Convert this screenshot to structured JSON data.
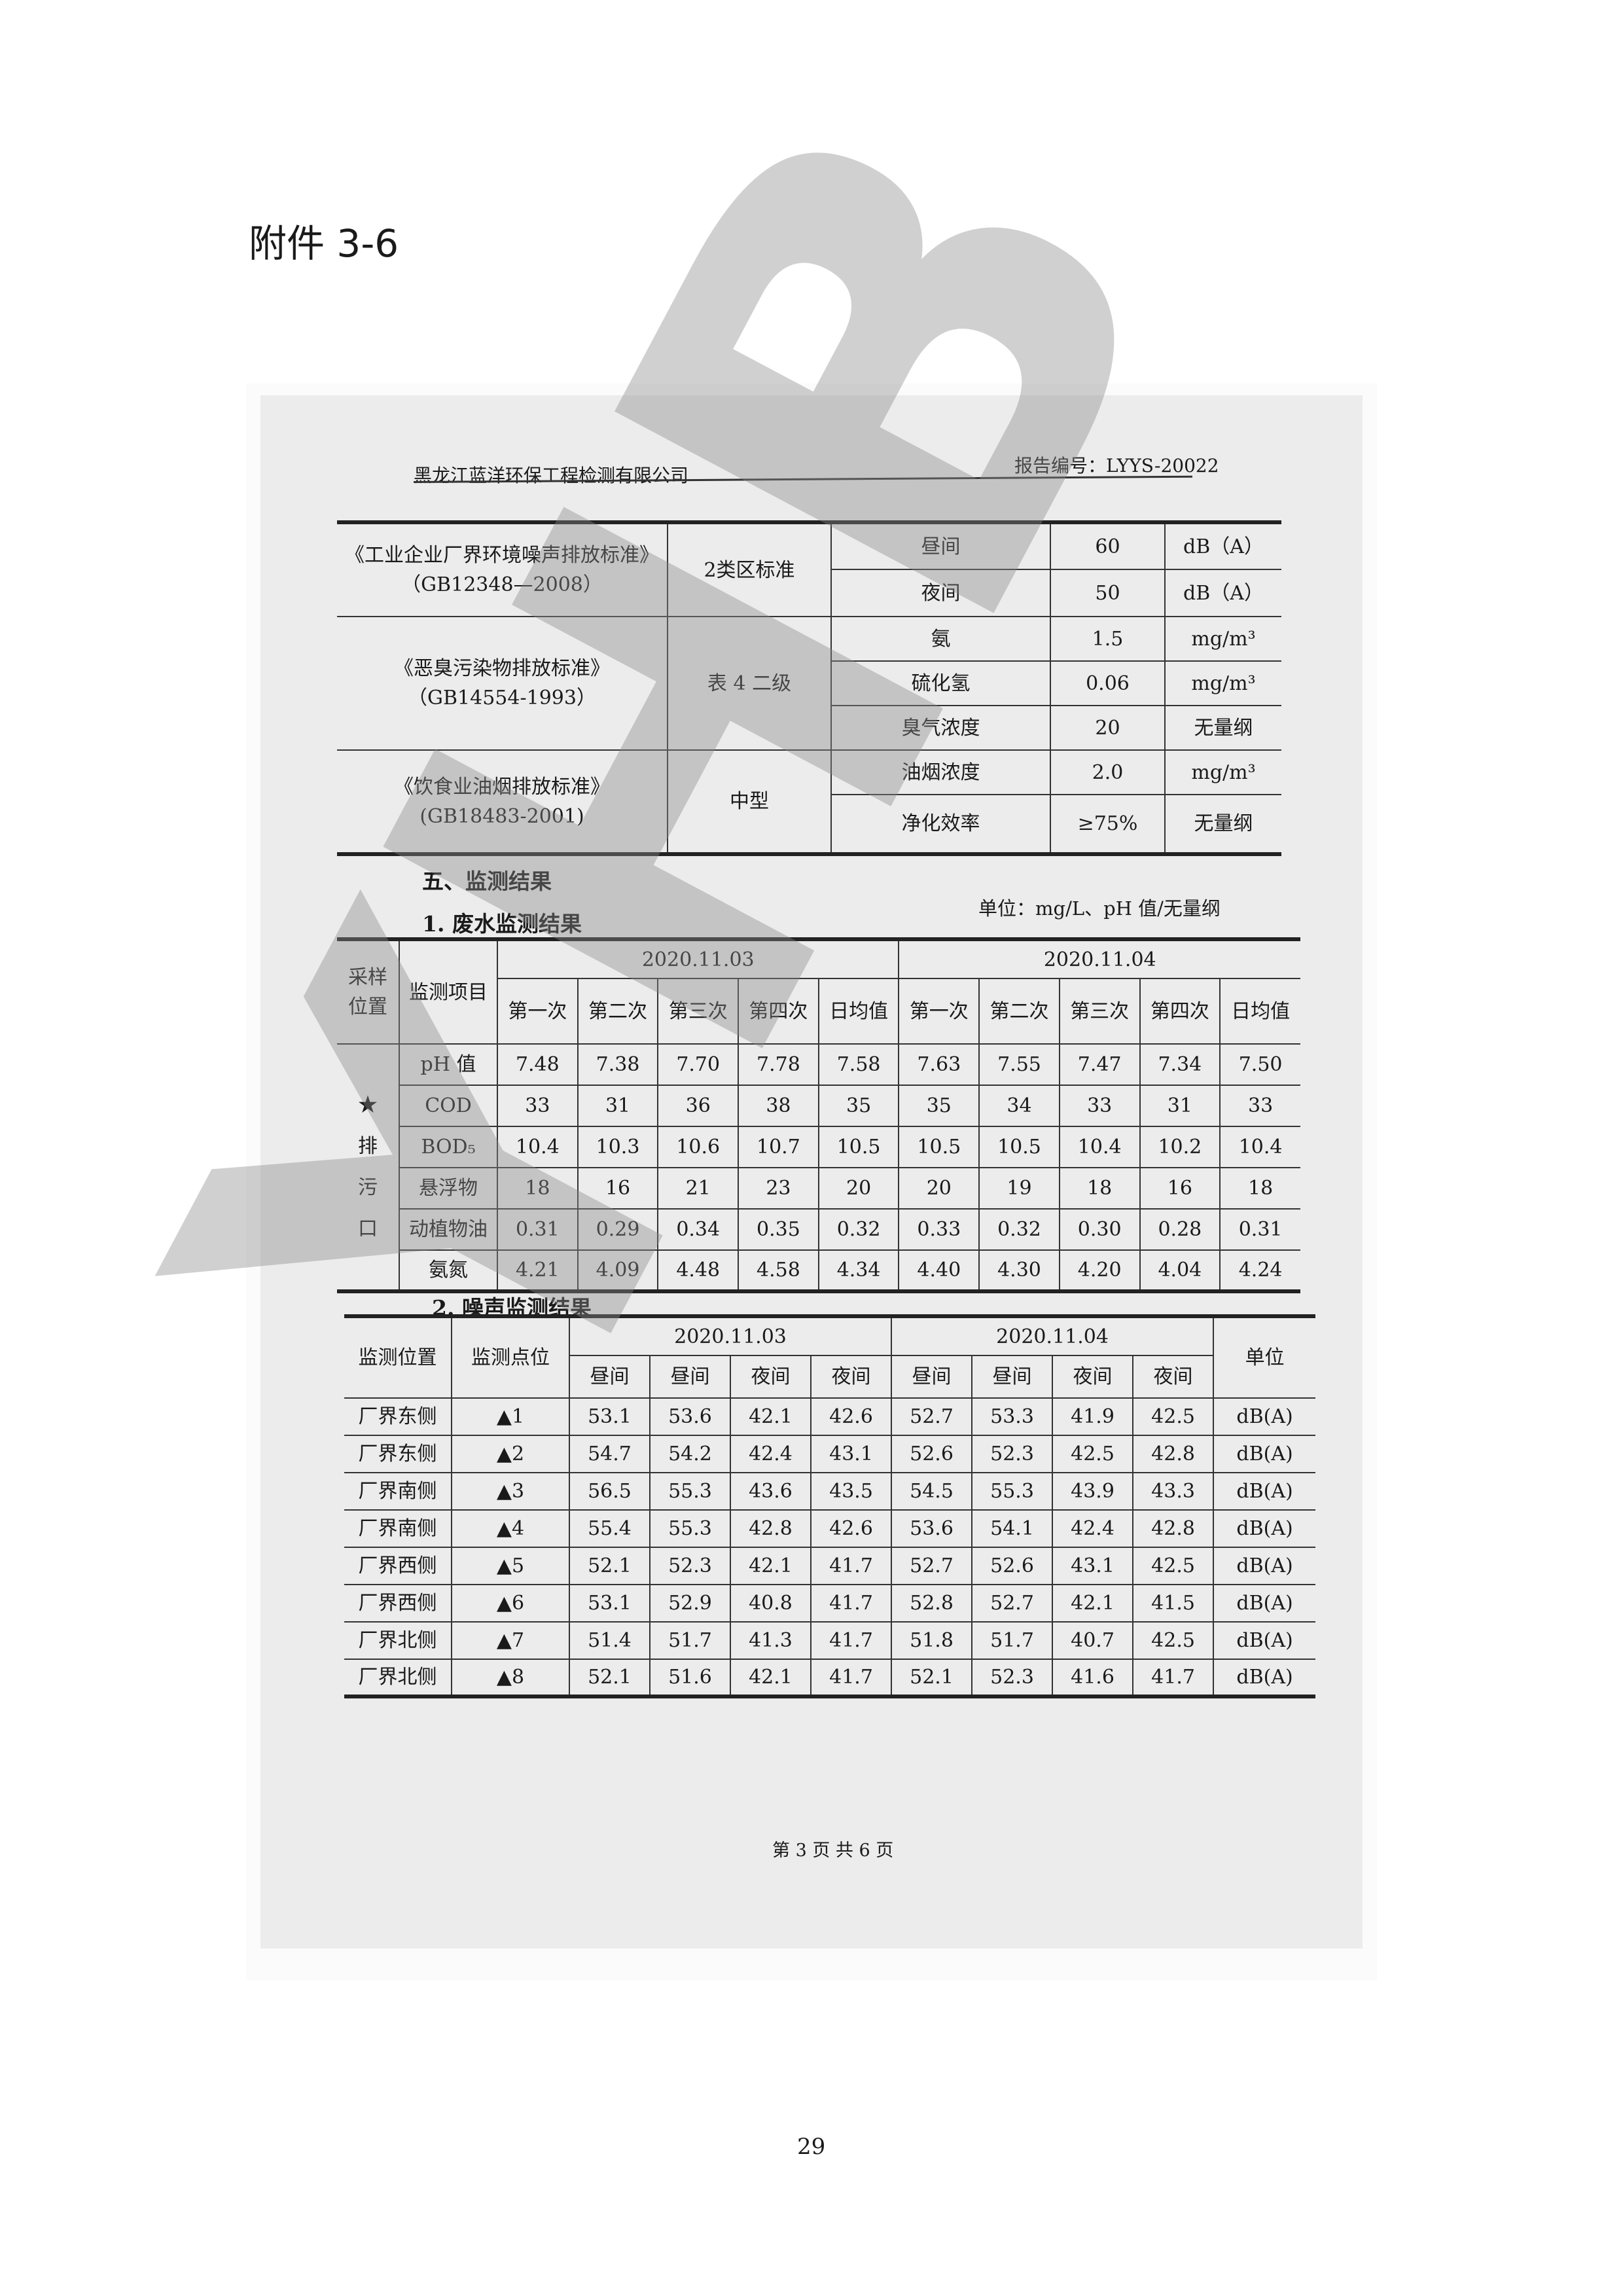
{
  "annex_title": "附件 3-6",
  "header": {
    "company": "黑龙江蓝洋环保工程检测有限公司",
    "report_no": "报告编号：LYYS-20022"
  },
  "standards": [
    {
      "name": "《工业企业厂界环境噪声排放标准》",
      "code": "（GB12348—2008）",
      "class": "2类区标准",
      "items": [
        {
          "item": "昼间",
          "limit": "60",
          "unit": "dB（A）"
        },
        {
          "item": "夜间",
          "limit": "50",
          "unit": "dB（A）"
        }
      ]
    },
    {
      "name": "《恶臭污染物排放标准》",
      "code": "（GB14554-1993）",
      "class": "表 4 二级",
      "items": [
        {
          "item": "氨",
          "limit": "1.5",
          "unit": "mg/m³"
        },
        {
          "item": "硫化氢",
          "limit": "0.06",
          "unit": "mg/m³"
        },
        {
          "item": "臭气浓度",
          "limit": "20",
          "unit": "无量纲"
        }
      ]
    },
    {
      "name": "《饮食业油烟排放标准》",
      "code": "(GB18483-2001)",
      "class": "中型",
      "items": [
        {
          "item": "油烟浓度",
          "limit": "2.0",
          "unit": "mg/m³"
        },
        {
          "item": "净化效率",
          "limit": "≥75%",
          "unit": "无量纲"
        }
      ]
    }
  ],
  "section5_title": "五、监测结果",
  "wastewater": {
    "title": "1. 废水监测结果",
    "unit": "单位：mg/L、pH 值/无量纲",
    "col_location": "采样位置",
    "col_item": "监测项目",
    "dates": [
      "2020.11.03",
      "2020.11.04"
    ],
    "sub_cols": [
      "第一次",
      "第二次",
      "第三次",
      "第四次",
      "日均值"
    ],
    "location": "★排污口",
    "rows": [
      {
        "item": "pH 值",
        "values": [
          "7.48",
          "7.38",
          "7.70",
          "7.78",
          "7.58",
          "7.63",
          "7.55",
          "7.47",
          "7.34",
          "7.50"
        ]
      },
      {
        "item": "COD",
        "values": [
          "33",
          "31",
          "36",
          "38",
          "35",
          "35",
          "34",
          "33",
          "31",
          "33"
        ]
      },
      {
        "item": "BOD₅",
        "values": [
          "10.4",
          "10.3",
          "10.6",
          "10.7",
          "10.5",
          "10.5",
          "10.5",
          "10.4",
          "10.2",
          "10.4"
        ]
      },
      {
        "item": "悬浮物",
        "values": [
          "18",
          "16",
          "21",
          "23",
          "20",
          "20",
          "19",
          "18",
          "16",
          "18"
        ]
      },
      {
        "item": "动植物油",
        "values": [
          "0.31",
          "0.29",
          "0.34",
          "0.35",
          "0.32",
          "0.33",
          "0.32",
          "0.30",
          "0.28",
          "0.31"
        ]
      },
      {
        "item": "氨氮",
        "values": [
          "4.21",
          "4.09",
          "4.48",
          "4.58",
          "4.34",
          "4.40",
          "4.30",
          "4.20",
          "4.04",
          "4.24"
        ]
      }
    ]
  },
  "noise": {
    "title": "2. 噪声监测结果",
    "col_location": "监测位置",
    "col_point": "监测点位",
    "dates": [
      "2020.11.03",
      "2020.11.04"
    ],
    "sub_cols": [
      "昼间",
      "昼间",
      "夜间",
      "夜间"
    ],
    "col_unit": "单位",
    "rows": [
      {
        "location": "厂界东侧",
        "point": "▲1",
        "values": [
          "53.1",
          "53.6",
          "42.1",
          "42.6",
          "52.7",
          "53.3",
          "41.9",
          "42.5"
        ],
        "unit": "dB(A)"
      },
      {
        "location": "厂界东侧",
        "point": "▲2",
        "values": [
          "54.7",
          "54.2",
          "42.4",
          "43.1",
          "52.6",
          "52.3",
          "42.5",
          "42.8"
        ],
        "unit": "dB(A)"
      },
      {
        "location": "厂界南侧",
        "point": "▲3",
        "values": [
          "56.5",
          "55.3",
          "43.6",
          "43.5",
          "54.5",
          "55.3",
          "43.9",
          "43.3"
        ],
        "unit": "dB(A)"
      },
      {
        "location": "厂界南侧",
        "point": "▲4",
        "values": [
          "55.4",
          "55.3",
          "42.8",
          "42.6",
          "53.6",
          "54.1",
          "42.4",
          "42.8"
        ],
        "unit": "dB(A)"
      },
      {
        "location": "厂界西侧",
        "point": "▲5",
        "values": [
          "52.1",
          "52.3",
          "42.1",
          "41.7",
          "52.7",
          "52.6",
          "43.1",
          "42.5"
        ],
        "unit": "dB(A)"
      },
      {
        "location": "厂界西侧",
        "point": "▲6",
        "values": [
          "53.1",
          "52.9",
          "40.8",
          "41.7",
          "52.8",
          "52.7",
          "42.1",
          "41.5"
        ],
        "unit": "dB(A)"
      },
      {
        "location": "厂界北侧",
        "point": "▲7",
        "values": [
          "51.4",
          "51.7",
          "41.3",
          "41.7",
          "51.8",
          "51.7",
          "40.7",
          "42.5"
        ],
        "unit": "dB(A)"
      },
      {
        "location": "厂界北侧",
        "point": "▲8",
        "values": [
          "52.1",
          "51.6",
          "42.1",
          "41.7",
          "52.1",
          "52.3",
          "41.6",
          "41.7"
        ],
        "unit": "dB(A)"
      }
    ]
  },
  "page_footer": "第 3 页 共 6 页",
  "page_number": "29",
  "watermark": {
    "text": "YHB",
    "color": "#8a8a8a"
  }
}
